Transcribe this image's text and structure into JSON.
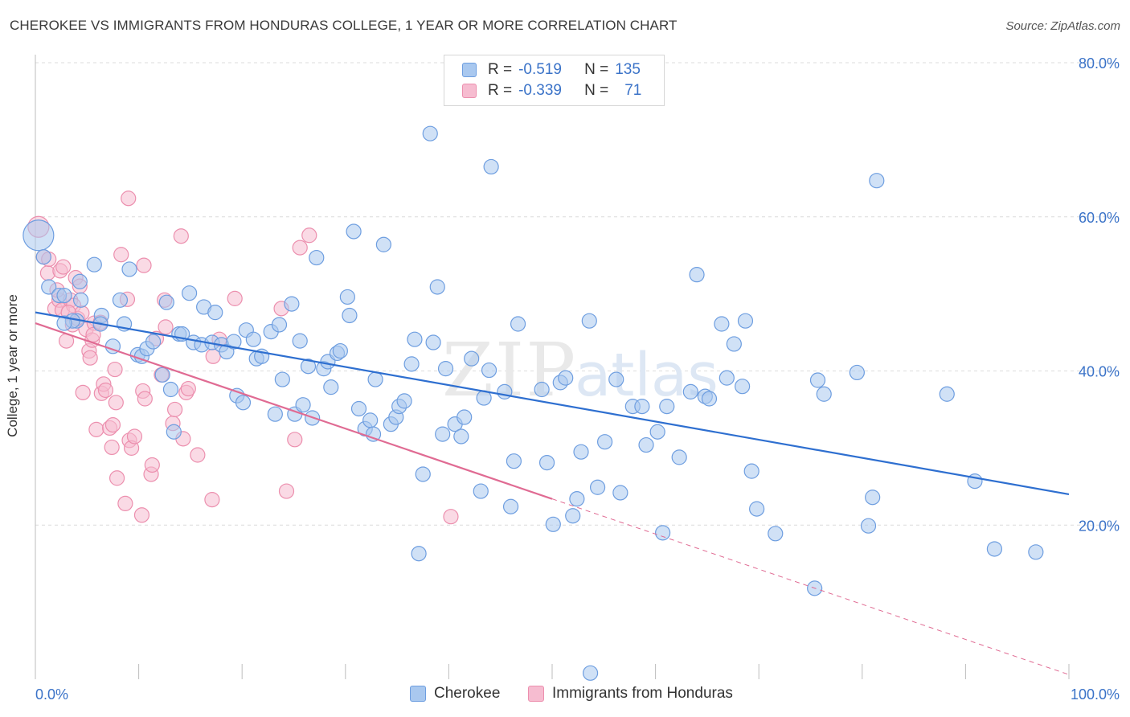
{
  "title": "CHEROKEE VS IMMIGRANTS FROM HONDURAS COLLEGE, 1 YEAR OR MORE CORRELATION CHART",
  "source": "Source: ZipAtlas.com",
  "watermark": {
    "zip": "ZIP",
    "atlas": "atlas"
  },
  "legend_top": {
    "rows": [
      {
        "r_label": "R =",
        "r_value": "-0.519",
        "n_label": "N =",
        "n_value": "135"
      },
      {
        "r_label": "R =",
        "r_value": "-0.339",
        "n_label": "N =",
        "n_value": "71"
      }
    ]
  },
  "colors": {
    "blue_fill": "#a9c8ef",
    "blue_stroke": "#6e9ee0",
    "blue_line": "#2e6fd0",
    "pink_fill": "#f6bcd0",
    "pink_stroke": "#ec8fae",
    "pink_line": "#e06b93",
    "axis_text": "#3b73c8",
    "grid": "#dcdcdc"
  },
  "chart_data": {
    "type": "scatter",
    "title": "CHEROKEE VS IMMIGRANTS FROM HONDURAS COLLEGE, 1 YEAR OR MORE CORRELATION CHART",
    "xlabel": "",
    "ylabel": "College, 1 year or more",
    "xlim": [
      0,
      100
    ],
    "ylim": [
      0,
      80
    ],
    "x_tick_labels": [
      "0.0%",
      "100.0%"
    ],
    "y_ticks": [
      20,
      40,
      60,
      80
    ],
    "y_tick_labels": [
      "20.0%",
      "40.0%",
      "60.0%",
      "80.0%"
    ],
    "grid": true,
    "legend_placement": "top-center",
    "series": [
      {
        "name": "Cherokee",
        "r": -0.519,
        "n": 135,
        "trend": {
          "x": [
            0,
            100
          ],
          "y": [
            47.6,
            24.0
          ]
        },
        "points": [
          [
            0.3,
            57.6
          ],
          [
            0.8,
            54.8
          ],
          [
            1.3,
            50.9
          ],
          [
            2.3,
            49.8
          ],
          [
            2.8,
            49.8
          ],
          [
            4.3,
            51.6
          ],
          [
            4.4,
            49.2
          ],
          [
            5.7,
            53.8
          ],
          [
            6.4,
            47.2
          ],
          [
            4.0,
            46.5
          ],
          [
            3.6,
            46.5
          ],
          [
            2.8,
            46.2
          ],
          [
            6.3,
            46.1
          ],
          [
            8.2,
            49.2
          ],
          [
            8.6,
            46.1
          ],
          [
            9.1,
            53.2
          ],
          [
            9.9,
            42.1
          ],
          [
            10.3,
            41.9
          ],
          [
            10.8,
            42.9
          ],
          [
            7.5,
            43.2
          ],
          [
            11.4,
            43.8
          ],
          [
            12.3,
            39.5
          ],
          [
            12.7,
            48.9
          ],
          [
            13.1,
            37.6
          ],
          [
            13.4,
            32.1
          ],
          [
            13.9,
            44.8
          ],
          [
            14.2,
            44.8
          ],
          [
            14.9,
            50.1
          ],
          [
            15.3,
            43.7
          ],
          [
            16.1,
            43.4
          ],
          [
            16.3,
            48.3
          ],
          [
            17.1,
            43.7
          ],
          [
            17.4,
            47.6
          ],
          [
            18.0,
            43.4
          ],
          [
            18.5,
            42.5
          ],
          [
            19.2,
            43.8
          ],
          [
            19.5,
            36.8
          ],
          [
            20.1,
            35.9
          ],
          [
            20.4,
            45.3
          ],
          [
            21.1,
            44.1
          ],
          [
            21.4,
            41.6
          ],
          [
            21.9,
            41.9
          ],
          [
            22.8,
            45.1
          ],
          [
            23.2,
            34.4
          ],
          [
            23.6,
            46.0
          ],
          [
            23.9,
            38.9
          ],
          [
            24.8,
            48.7
          ],
          [
            25.1,
            34.4
          ],
          [
            25.6,
            43.9
          ],
          [
            25.9,
            35.6
          ],
          [
            26.4,
            40.6
          ],
          [
            26.8,
            33.9
          ],
          [
            27.2,
            54.7
          ],
          [
            27.9,
            40.3
          ],
          [
            28.3,
            41.2
          ],
          [
            28.6,
            37.9
          ],
          [
            29.2,
            42.3
          ],
          [
            29.5,
            42.6
          ],
          [
            30.2,
            49.6
          ],
          [
            30.8,
            58.1
          ],
          [
            30.4,
            47.2
          ],
          [
            31.3,
            35.1
          ],
          [
            31.9,
            32.5
          ],
          [
            32.4,
            33.6
          ],
          [
            32.7,
            31.8
          ],
          [
            32.9,
            38.9
          ],
          [
            33.7,
            56.4
          ],
          [
            34.4,
            33.1
          ],
          [
            34.9,
            34.0
          ],
          [
            35.2,
            35.4
          ],
          [
            35.7,
            36.1
          ],
          [
            36.4,
            40.9
          ],
          [
            36.7,
            44.1
          ],
          [
            37.1,
            16.3
          ],
          [
            37.5,
            26.6
          ],
          [
            38.2,
            70.8
          ],
          [
            38.5,
            43.7
          ],
          [
            38.9,
            50.9
          ],
          [
            39.4,
            31.8
          ],
          [
            39.7,
            40.3
          ],
          [
            40.6,
            33.1
          ],
          [
            41.2,
            31.5
          ],
          [
            41.5,
            34.0
          ],
          [
            42.2,
            41.6
          ],
          [
            43.1,
            24.4
          ],
          [
            43.4,
            36.5
          ],
          [
            43.9,
            40.1
          ],
          [
            44.1,
            66.5
          ],
          [
            45.4,
            37.3
          ],
          [
            46.0,
            22.4
          ],
          [
            46.3,
            28.3
          ],
          [
            46.7,
            46.1
          ],
          [
            49.0,
            37.6
          ],
          [
            49.5,
            28.1
          ],
          [
            50.1,
            20.1
          ],
          [
            50.8,
            38.5
          ],
          [
            51.3,
            39.1
          ],
          [
            52.0,
            21.2
          ],
          [
            52.4,
            23.4
          ],
          [
            52.8,
            29.5
          ],
          [
            53.6,
            46.5
          ],
          [
            54.4,
            24.9
          ],
          [
            55.1,
            30.8
          ],
          [
            56.2,
            38.9
          ],
          [
            56.6,
            24.2
          ],
          [
            57.8,
            35.4
          ],
          [
            58.7,
            35.4
          ],
          [
            59.1,
            30.4
          ],
          [
            60.2,
            32.1
          ],
          [
            60.7,
            19.0
          ],
          [
            61.1,
            35.4
          ],
          [
            62.3,
            28.8
          ],
          [
            63.4,
            37.3
          ],
          [
            64.0,
            52.5
          ],
          [
            64.8,
            36.7
          ],
          [
            65.2,
            36.4
          ],
          [
            66.4,
            46.1
          ],
          [
            66.9,
            39.1
          ],
          [
            67.6,
            43.5
          ],
          [
            68.4,
            38.0
          ],
          [
            68.7,
            46.5
          ],
          [
            69.3,
            27.0
          ],
          [
            69.8,
            22.1
          ],
          [
            71.6,
            18.9
          ],
          [
            75.4,
            11.8
          ],
          [
            75.7,
            38.8
          ],
          [
            76.3,
            37.0
          ],
          [
            79.5,
            39.8
          ],
          [
            80.6,
            19.9
          ],
          [
            81.0,
            23.6
          ],
          [
            81.4,
            64.7
          ],
          [
            88.2,
            37.0
          ],
          [
            90.9,
            25.7
          ],
          [
            92.8,
            16.9
          ],
          [
            96.8,
            16.5
          ],
          [
            53.7,
            0.8
          ]
        ]
      },
      {
        "name": "Immigrants from Honduras",
        "r": -0.339,
        "n": 71,
        "trend": {
          "x": [
            0,
            50
          ],
          "y": [
            46.2,
            23.4
          ]
        },
        "trend_dashed": {
          "x": [
            50,
            100
          ],
          "y": [
            23.4,
            0.6
          ]
        },
        "points": [
          [
            0.3,
            58.7
          ],
          [
            0.8,
            54.8
          ],
          [
            1.2,
            52.7
          ],
          [
            1.9,
            48.1
          ],
          [
            2.3,
            49.2
          ],
          [
            2.6,
            47.9
          ],
          [
            3.0,
            43.9
          ],
          [
            3.4,
            49.2
          ],
          [
            2.4,
            53.0
          ],
          [
            2.7,
            53.5
          ],
          [
            3.6,
            46.0
          ],
          [
            3.9,
            52.1
          ],
          [
            3.7,
            48.5
          ],
          [
            4.1,
            46.8
          ],
          [
            4.3,
            51.0
          ],
          [
            4.5,
            47.5
          ],
          [
            4.9,
            45.4
          ],
          [
            5.2,
            42.6
          ],
          [
            5.3,
            41.7
          ],
          [
            5.5,
            44.0
          ],
          [
            5.7,
            46.2
          ],
          [
            4.6,
            37.2
          ],
          [
            5.6,
            44.7
          ],
          [
            5.9,
            32.4
          ],
          [
            6.3,
            46.3
          ],
          [
            6.4,
            37.1
          ],
          [
            6.6,
            38.3
          ],
          [
            6.8,
            37.5
          ],
          [
            7.2,
            32.6
          ],
          [
            7.4,
            30.1
          ],
          [
            7.5,
            33.0
          ],
          [
            7.8,
            35.9
          ],
          [
            7.7,
            40.2
          ],
          [
            7.9,
            26.1
          ],
          [
            8.3,
            55.1
          ],
          [
            8.7,
            22.8
          ],
          [
            8.9,
            49.3
          ],
          [
            9.1,
            31.0
          ],
          [
            9.3,
            30.0
          ],
          [
            9.6,
            31.5
          ],
          [
            9.0,
            62.4
          ],
          [
            10.3,
            21.3
          ],
          [
            10.4,
            37.4
          ],
          [
            10.5,
            53.7
          ],
          [
            10.6,
            36.4
          ],
          [
            11.2,
            26.6
          ],
          [
            11.3,
            27.8
          ],
          [
            11.7,
            44.2
          ],
          [
            12.2,
            39.5
          ],
          [
            12.5,
            49.2
          ],
          [
            12.6,
            45.7
          ],
          [
            13.3,
            33.2
          ],
          [
            13.5,
            35.0
          ],
          [
            14.1,
            57.5
          ],
          [
            14.3,
            31.2
          ],
          [
            14.6,
            37.2
          ],
          [
            14.8,
            37.7
          ],
          [
            15.7,
            29.1
          ],
          [
            17.1,
            23.3
          ],
          [
            17.2,
            41.9
          ],
          [
            17.8,
            44.1
          ],
          [
            19.3,
            49.4
          ],
          [
            23.8,
            48.1
          ],
          [
            24.3,
            24.4
          ],
          [
            25.1,
            31.1
          ],
          [
            25.6,
            56.0
          ],
          [
            26.5,
            57.6
          ],
          [
            40.2,
            21.1
          ],
          [
            1.3,
            54.5
          ],
          [
            3.2,
            47.6
          ],
          [
            2.1,
            50.5
          ]
        ]
      }
    ]
  },
  "bottom_legend": {
    "items": [
      "Cherokee",
      "Immigrants from Honduras"
    ]
  }
}
